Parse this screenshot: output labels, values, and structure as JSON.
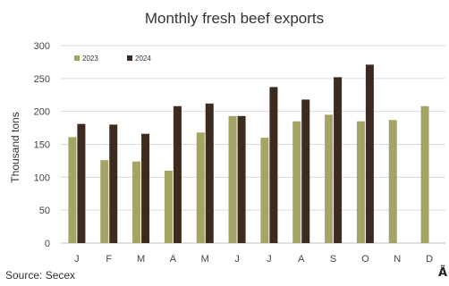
{
  "chart_data": {
    "type": "bar",
    "title": "Monthly fresh beef exports",
    "ylabel": "Thousand tons",
    "xlabel": "",
    "categories": [
      "J",
      "F",
      "M",
      "A",
      "M",
      "J",
      "J",
      "A",
      "S",
      "O",
      "N",
      "D"
    ],
    "ylim": [
      0,
      300
    ],
    "yticks": [
      0,
      50,
      100,
      150,
      200,
      250,
      300
    ],
    "grid": true,
    "legend_position": "top-left",
    "series": [
      {
        "name": "2023",
        "color": "#a5a464",
        "values": [
          161,
          126,
          124,
          110,
          168,
          193,
          160,
          185,
          195,
          185,
          187,
          208
        ]
      },
      {
        "name": "2024",
        "color": "#3d2b1f",
        "values": [
          181,
          180,
          166,
          208,
          212,
          193,
          237,
          218,
          252,
          271,
          null,
          null
        ]
      }
    ]
  },
  "source": "Source: Secex",
  "logo_text": "Ã"
}
